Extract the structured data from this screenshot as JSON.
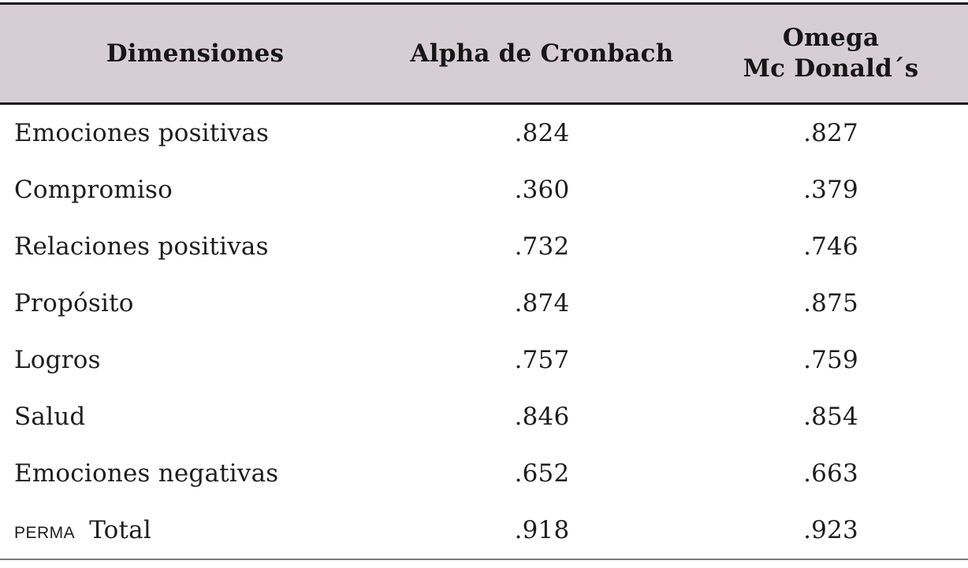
{
  "table": {
    "header": {
      "dimensiones": "Dimensiones",
      "alpha": "Alpha de Cronbach",
      "omega_line1": "Omega",
      "omega_line2": "Mc Donald´s"
    },
    "rows": [
      {
        "dimension": "Emociones positivas",
        "alpha": ".824",
        "omega": ".827"
      },
      {
        "dimension": "Compromiso",
        "alpha": ".360",
        "omega": ".379"
      },
      {
        "dimension": "Relaciones positivas",
        "alpha": ".732",
        "omega": ".746"
      },
      {
        "dimension": "Propósito",
        "alpha": ".874",
        "omega": ".875"
      },
      {
        "dimension": "Logros",
        "alpha": ".757",
        "omega": ".759"
      },
      {
        "dimension": "Salud",
        "alpha": ".846",
        "omega": ".854"
      },
      {
        "dimension": "Emociones negativas",
        "alpha": ".652",
        "omega": ".663"
      }
    ],
    "total_row": {
      "prefix": "PERMA",
      "label": "Total",
      "alpha": ".918",
      "omega": ".923"
    }
  },
  "colors": {
    "header_bg": "#d7ced3",
    "rule_dark": "#161616",
    "rule_bottom": "#7b7b7b",
    "text": "#1d1d1d"
  }
}
